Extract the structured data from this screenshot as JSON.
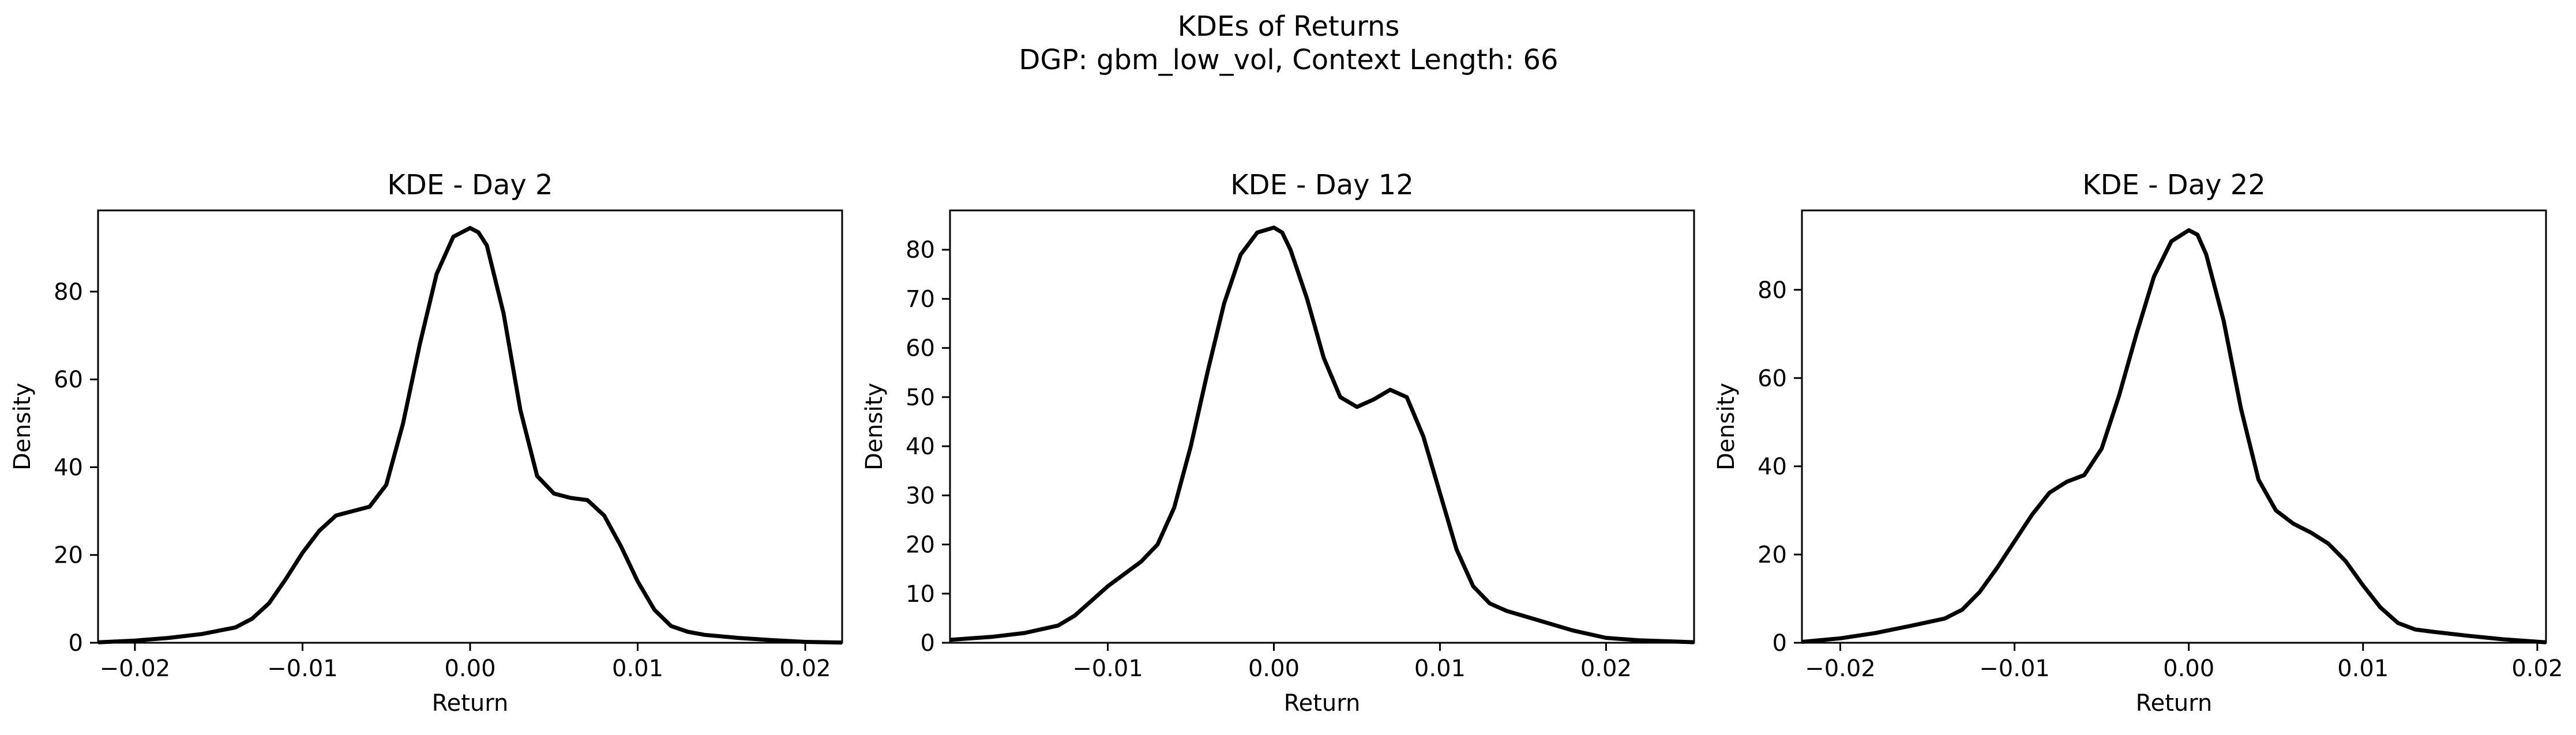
{
  "figure": {
    "title_line1": "KDEs of Returns",
    "title_line2": "DGP: gbm_low_vol, Context Length: 66"
  },
  "chart_data": [
    {
      "type": "line",
      "title": "KDE - Day 2",
      "xlabel": "Return",
      "ylabel": "Density",
      "xlim": [
        -0.0222,
        0.0222
      ],
      "ylim": [
        0,
        98.5
      ],
      "xticks": [
        -0.02,
        -0.01,
        0.0,
        0.01,
        0.02
      ],
      "xtick_labels": [
        "−0.02",
        "−0.01",
        "0.00",
        "0.01",
        "0.02"
      ],
      "yticks": [
        0,
        20,
        40,
        60,
        80
      ],
      "ytick_labels": [
        "0",
        "20",
        "40",
        "60",
        "80"
      ],
      "grid": false,
      "line_color": "#000000",
      "series": [
        {
          "x": [
            -0.0222,
            -0.02,
            -0.018,
            -0.016,
            -0.014,
            -0.013,
            -0.012,
            -0.011,
            -0.01,
            -0.009,
            -0.008,
            -0.007,
            -0.006,
            -0.005,
            -0.004,
            -0.003,
            -0.002,
            -0.001,
            0.0,
            0.0005,
            0.001,
            0.002,
            0.003,
            0.004,
            0.005,
            0.006,
            0.007,
            0.008,
            0.009,
            0.01,
            0.011,
            0.012,
            0.013,
            0.014,
            0.016,
            0.018,
            0.02,
            0.0222
          ],
          "y": [
            0.1,
            0.5,
            1.1,
            2.0,
            3.5,
            5.5,
            9.0,
            14.5,
            20.5,
            25.5,
            29.0,
            30.0,
            31.0,
            36.0,
            50.0,
            68.0,
            84.0,
            92.5,
            94.5,
            93.5,
            90.5,
            75.0,
            53.0,
            38.0,
            34.0,
            33.0,
            32.5,
            29.0,
            22.0,
            14.0,
            7.5,
            3.8,
            2.5,
            1.8,
            1.1,
            0.6,
            0.2,
            0.05
          ]
        }
      ]
    },
    {
      "type": "line",
      "title": "KDE - Day 12",
      "xlabel": "Return",
      "ylabel": "Density",
      "xlim": [
        -0.0195,
        0.0253
      ],
      "ylim": [
        0,
        88
      ],
      "xticks": [
        -0.01,
        0.0,
        0.01,
        0.02
      ],
      "xtick_labels": [
        "−0.01",
        "0.00",
        "0.01",
        "0.02"
      ],
      "yticks": [
        0,
        10,
        20,
        30,
        40,
        50,
        60,
        70,
        80
      ],
      "ytick_labels": [
        "0",
        "10",
        "20",
        "30",
        "40",
        "50",
        "60",
        "70",
        "80"
      ],
      "grid": false,
      "line_color": "#000000",
      "series": [
        {
          "x": [
            -0.0195,
            -0.017,
            -0.015,
            -0.013,
            -0.012,
            -0.011,
            -0.01,
            -0.009,
            -0.008,
            -0.007,
            -0.006,
            -0.005,
            -0.004,
            -0.003,
            -0.002,
            -0.001,
            0.0,
            0.0005,
            0.001,
            0.002,
            0.003,
            0.004,
            0.005,
            0.006,
            0.007,
            0.008,
            0.009,
            0.01,
            0.011,
            0.012,
            0.013,
            0.014,
            0.015,
            0.016,
            0.018,
            0.02,
            0.022,
            0.0253
          ],
          "y": [
            0.6,
            1.2,
            2.0,
            3.5,
            5.5,
            8.5,
            11.5,
            14.0,
            16.5,
            20.0,
            27.5,
            40.0,
            55.0,
            69.0,
            79.0,
            83.5,
            84.5,
            83.5,
            80.0,
            70.0,
            58.0,
            50.0,
            48.0,
            49.5,
            51.5,
            50.0,
            42.0,
            30.5,
            19.0,
            11.5,
            8.0,
            6.5,
            5.5,
            4.5,
            2.5,
            1.0,
            0.5,
            0.1
          ]
        }
      ]
    },
    {
      "type": "line",
      "title": "KDE - Day 22",
      "xlabel": "Return",
      "ylabel": "Density",
      "xlim": [
        -0.0222,
        0.0205
      ],
      "ylim": [
        0,
        98
      ],
      "xticks": [
        -0.02,
        -0.01,
        0.0,
        0.01,
        0.02
      ],
      "xtick_labels": [
        "−0.02",
        "−0.01",
        "0.00",
        "0.01",
        "0.02"
      ],
      "yticks": [
        0,
        20,
        40,
        60,
        80
      ],
      "ytick_labels": [
        "0",
        "20",
        "40",
        "60",
        "80"
      ],
      "grid": false,
      "line_color": "#000000",
      "series": [
        {
          "x": [
            -0.0222,
            -0.02,
            -0.018,
            -0.016,
            -0.014,
            -0.013,
            -0.012,
            -0.011,
            -0.01,
            -0.009,
            -0.008,
            -0.007,
            -0.006,
            -0.005,
            -0.004,
            -0.003,
            -0.002,
            -0.001,
            0.0,
            0.0005,
            0.001,
            0.002,
            0.003,
            0.004,
            0.005,
            0.006,
            0.007,
            0.008,
            0.009,
            0.01,
            0.011,
            0.012,
            0.013,
            0.014,
            0.016,
            0.018,
            0.0205
          ],
          "y": [
            0.2,
            1.0,
            2.2,
            3.8,
            5.5,
            7.5,
            11.5,
            17.0,
            23.0,
            29.0,
            34.0,
            36.5,
            38.0,
            44.0,
            56.0,
            70.0,
            83.0,
            91.0,
            93.5,
            92.5,
            88.0,
            73.0,
            53.0,
            37.0,
            30.0,
            27.0,
            25.0,
            22.5,
            18.5,
            13.0,
            8.0,
            4.5,
            3.0,
            2.5,
            1.6,
            0.8,
            0.1
          ]
        }
      ]
    }
  ]
}
